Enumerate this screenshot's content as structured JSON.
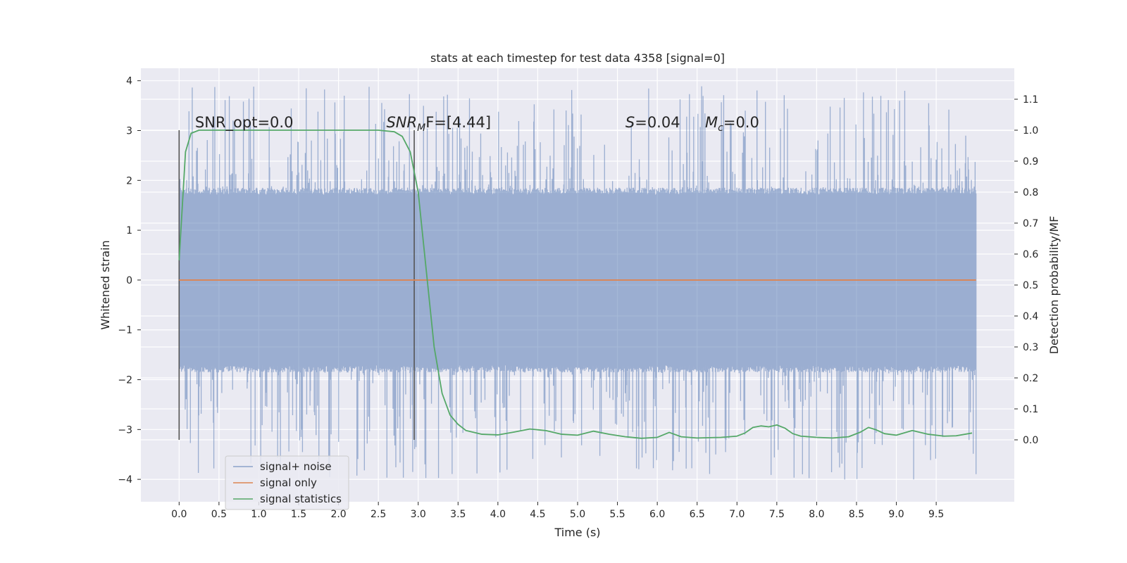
{
  "chart_data": {
    "type": "line",
    "title": "stats at each timestep for test data 4358 [signal=0]",
    "xlabel": "Time (s)",
    "ylabel_left": "Whitened strain",
    "ylabel_right": "Detection probability/MF",
    "xlim": [
      -0.48,
      10.48
    ],
    "ylim_left": [
      -4.45,
      4.25
    ],
    "ylim_right": [
      -0.2,
      1.2
    ],
    "x_ticks": [
      "0.0",
      "0.5",
      "1.0",
      "1.5",
      "2.0",
      "2.5",
      "3.0",
      "3.5",
      "4.0",
      "4.5",
      "5.0",
      "5.5",
      "6.0",
      "6.5",
      "7.0",
      "7.5",
      "8.0",
      "8.5",
      "9.0",
      "9.5"
    ],
    "y_ticks_left": [
      "−4",
      "−3",
      "−2",
      "−1",
      "0",
      "1",
      "2",
      "3",
      "4"
    ],
    "y_ticks_right": [
      "0.0",
      "0.1",
      "0.2",
      "0.3",
      "0.4",
      "0.5",
      "0.6",
      "0.7",
      "0.8",
      "0.9",
      "1.0",
      "1.1"
    ],
    "grid": true,
    "legend_position": "lower-left",
    "annotations": [
      {
        "prefix": "SNR_opt=0.0",
        "italic": "",
        "sub": "",
        "suffix": "",
        "x": 0.2
      },
      {
        "prefix": "",
        "italic": "SNR",
        "sub": "M",
        "suffix": "F=[4.44]",
        "x": 2.6
      },
      {
        "prefix": "",
        "italic": "S",
        "sub": "",
        "suffix": "=0.04",
        "x": 5.6
      },
      {
        "prefix": "",
        "italic": "M",
        "sub": "c",
        "suffix": "=0.0",
        "x": 6.6
      }
    ],
    "vertical_markers_x": [
      0.0,
      2.95
    ],
    "series": [
      {
        "name": "signal+ noise",
        "axis": "left",
        "color": "#4c72b0",
        "style": "noise",
        "x_range": [
          0.0,
          10.0
        ],
        "typical_range": [
          -1.8,
          1.8
        ],
        "extreme_range": [
          -4.05,
          3.9
        ]
      },
      {
        "name": "signal only",
        "axis": "left",
        "color": "#dd8452",
        "style": "line",
        "x": [
          0.0,
          10.0
        ],
        "values": [
          0.0,
          0.0
        ]
      },
      {
        "name": "signal statistics",
        "axis": "right",
        "color": "#55a868",
        "style": "line",
        "x": [
          0.0,
          0.08,
          0.15,
          0.25,
          0.5,
          1.0,
          2.0,
          2.5,
          2.7,
          2.8,
          2.9,
          3.0,
          3.1,
          3.2,
          3.3,
          3.4,
          3.5,
          3.6,
          3.8,
          4.0,
          4.2,
          4.4,
          4.6,
          4.8,
          5.0,
          5.2,
          5.4,
          5.6,
          5.8,
          6.0,
          6.15,
          6.3,
          6.5,
          6.8,
          7.0,
          7.1,
          7.2,
          7.3,
          7.4,
          7.5,
          7.6,
          7.7,
          7.8,
          8.0,
          8.2,
          8.4,
          8.55,
          8.65,
          8.75,
          8.85,
          9.0,
          9.2,
          9.4,
          9.6,
          9.75,
          9.95
        ],
        "values": [
          0.58,
          0.93,
          0.99,
          1.0,
          1.0,
          1.0,
          1.0,
          1.0,
          0.995,
          0.98,
          0.93,
          0.8,
          0.55,
          0.3,
          0.15,
          0.08,
          0.05,
          0.03,
          0.018,
          0.016,
          0.025,
          0.035,
          0.03,
          0.018,
          0.015,
          0.028,
          0.018,
          0.01,
          0.005,
          0.008,
          0.024,
          0.01,
          0.006,
          0.008,
          0.012,
          0.022,
          0.04,
          0.045,
          0.042,
          0.048,
          0.038,
          0.02,
          0.012,
          0.008,
          0.006,
          0.01,
          0.025,
          0.04,
          0.032,
          0.02,
          0.015,
          0.03,
          0.018,
          0.012,
          0.013,
          0.022
        ]
      }
    ]
  }
}
